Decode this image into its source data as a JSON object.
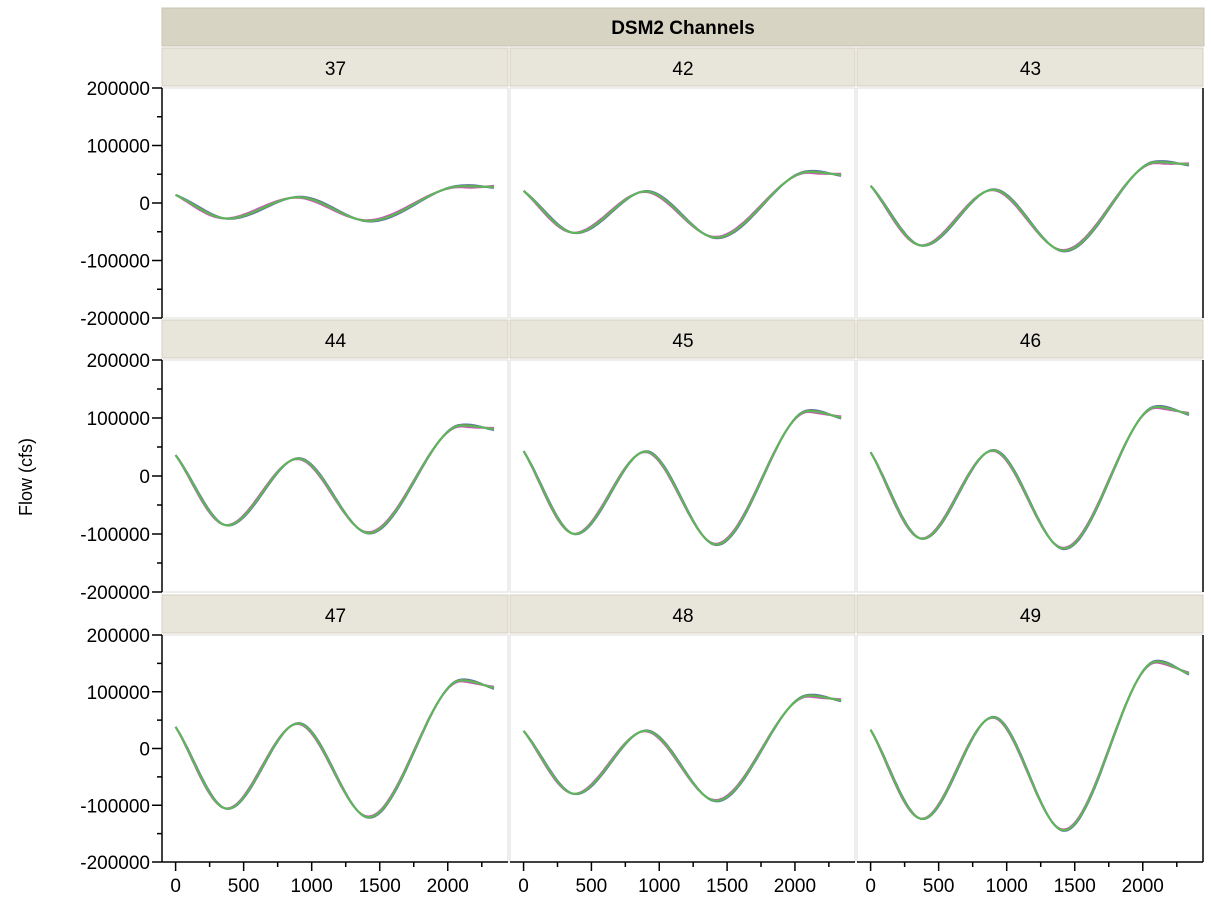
{
  "chart_data": {
    "type": "line",
    "title": "DSM2 Channels",
    "ylabel": "Flow (cfs)",
    "xlabel": "",
    "xlim": [
      -100,
      2450
    ],
    "ylim": [
      -200000,
      200000
    ],
    "xticks": [
      0,
      500,
      1000,
      1500,
      2000
    ],
    "xtick_labels": [
      "0",
      "500",
      "1000",
      "1500",
      "2000"
    ],
    "yticks": [
      -200000,
      -100000,
      0,
      100000,
      200000
    ],
    "ytick_labels": [
      "-200000",
      "-100000",
      "0",
      "100000",
      "200000"
    ],
    "grid": false,
    "legend": "none",
    "layout": {
      "rows": 3,
      "cols": 3
    },
    "series_colors": [
      "#4a6fd0",
      "#c85ab0",
      "#8a8a3a",
      "#5ab85a"
    ],
    "x": [
      0,
      380,
      900,
      1420,
      2100,
      2340
    ],
    "panels": [
      {
        "label": "37",
        "y": [
          14000,
          -27000,
          10000,
          -31000,
          29000,
          28000
        ]
      },
      {
        "label": "42",
        "y": [
          21000,
          -52000,
          20000,
          -60000,
          54000,
          49000
        ]
      },
      {
        "label": "43",
        "y": [
          30000,
          -74000,
          23000,
          -83000,
          71000,
          67000
        ]
      },
      {
        "label": "44",
        "y": [
          36000,
          -85000,
          30000,
          -98000,
          87000,
          81000
        ]
      },
      {
        "label": "45",
        "y": [
          43000,
          -100000,
          42000,
          -118000,
          112000,
          101000
        ]
      },
      {
        "label": "46",
        "y": [
          41000,
          -108000,
          44000,
          -125000,
          119000,
          107000
        ]
      },
      {
        "label": "47",
        "y": [
          38000,
          -106000,
          44000,
          -121000,
          120000,
          107000
        ]
      },
      {
        "label": "48",
        "y": [
          31000,
          -80000,
          31000,
          -92000,
          93000,
          85000
        ]
      },
      {
        "label": "49",
        "y": [
          33000,
          -124000,
          55000,
          -144000,
          153000,
          132000
        ]
      }
    ]
  }
}
